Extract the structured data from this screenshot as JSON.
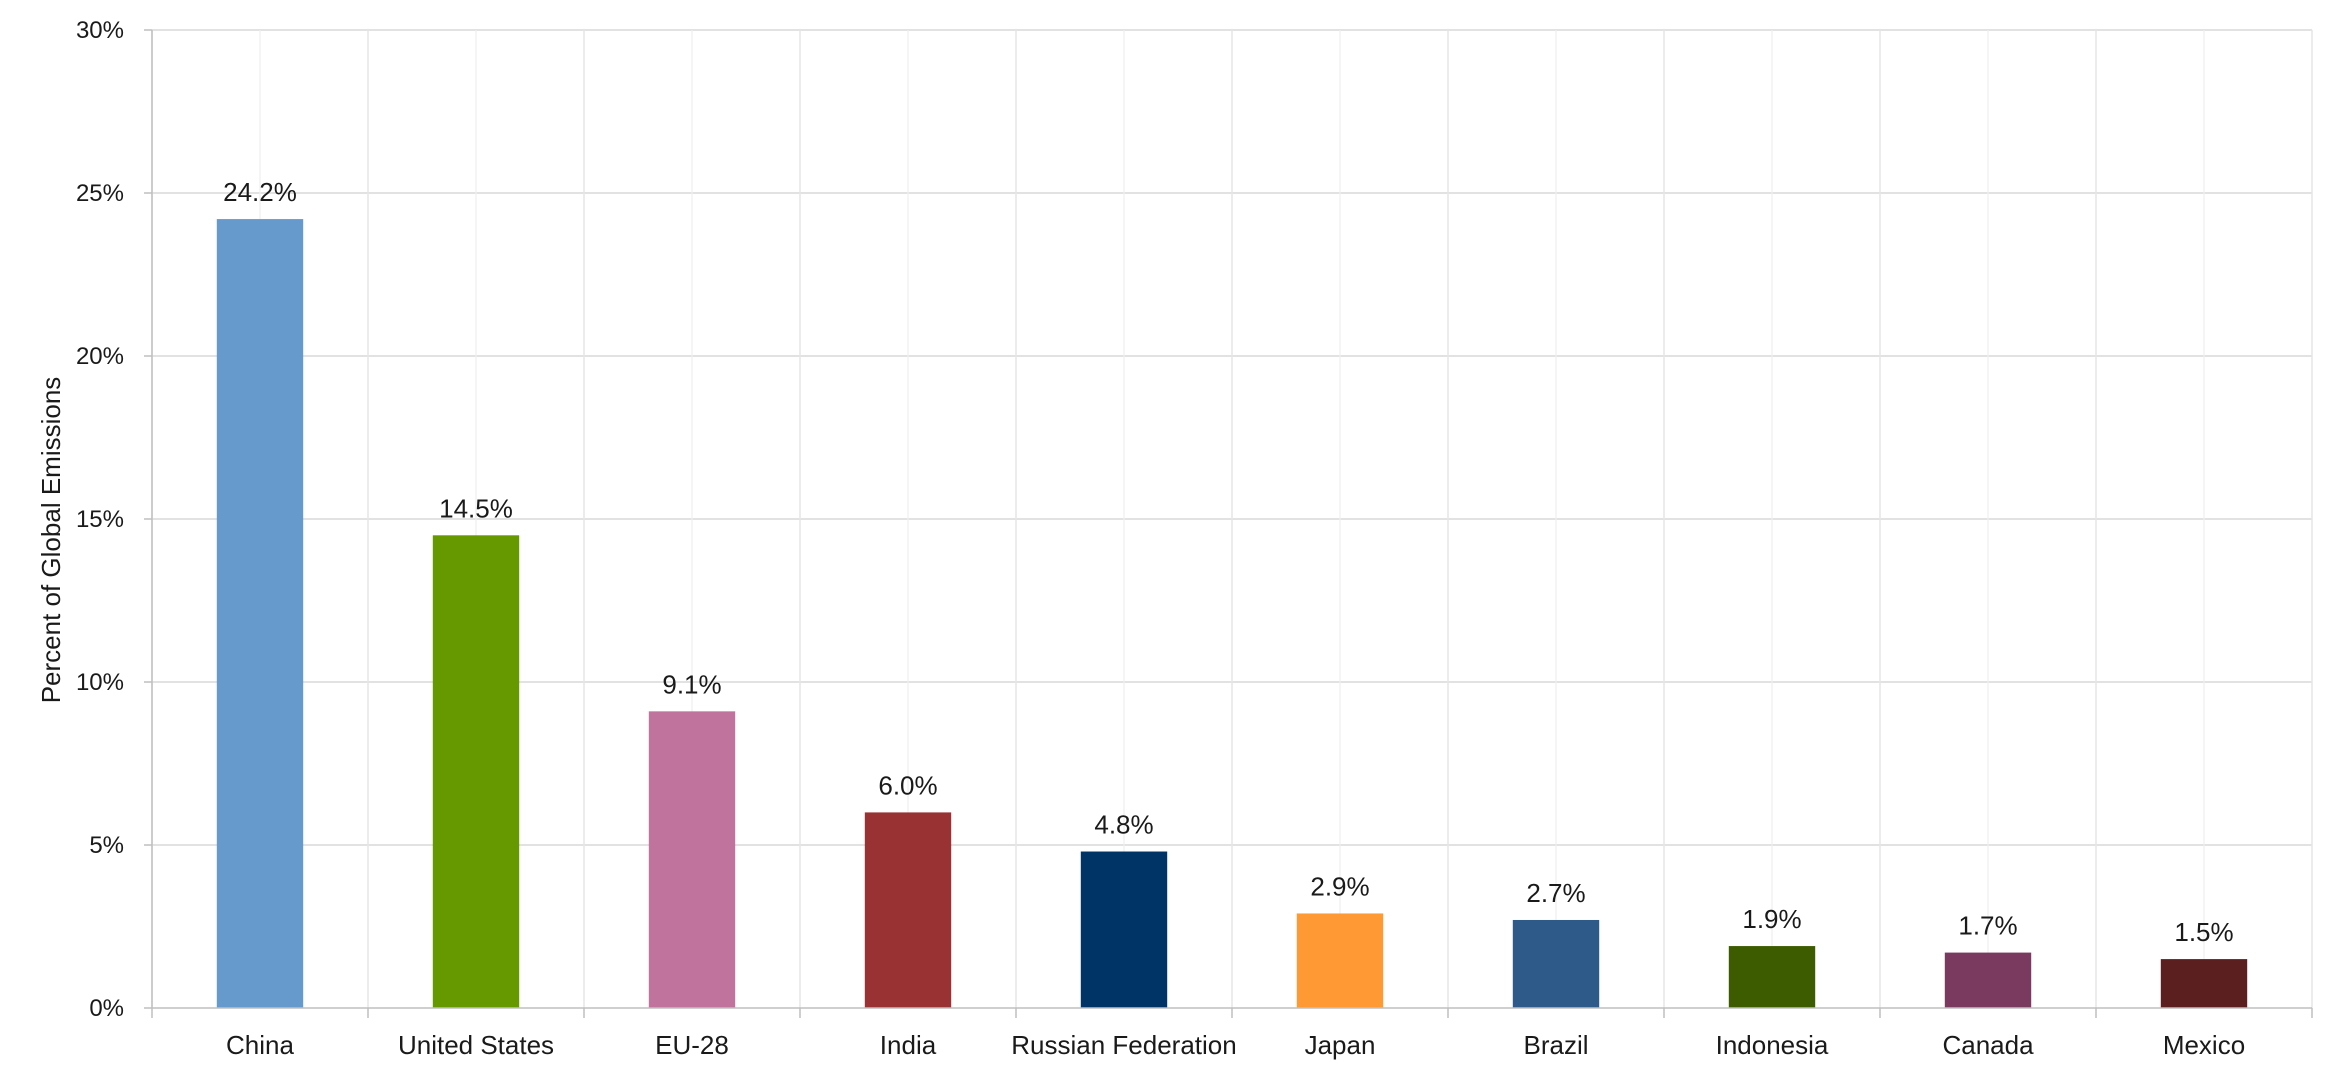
{
  "chart_data": {
    "type": "bar",
    "title": "",
    "xlabel": "",
    "ylabel": "Percent of Global Emissions",
    "ylim": [
      0,
      30
    ],
    "y_ticks": [
      0,
      5,
      10,
      15,
      20,
      25,
      30
    ],
    "y_tick_labels": [
      "0%",
      "5%",
      "10%",
      "15%",
      "20%",
      "25%",
      "30%"
    ],
    "grid": true,
    "categories": [
      "China",
      "United States",
      "EU-28",
      "India",
      "Russian Federation",
      "Japan",
      "Brazil",
      "Indonesia",
      "Canada",
      "Mexico"
    ],
    "values": [
      24.2,
      14.5,
      9.1,
      6.0,
      4.8,
      2.9,
      2.7,
      1.9,
      1.7,
      1.5
    ],
    "data_labels": [
      "24.2%",
      "14.5%",
      "9.1%",
      "6.0%",
      "4.8%",
      "2.9%",
      "2.7%",
      "1.9%",
      "1.7%",
      "1.5%"
    ],
    "colors": [
      "#6699cc",
      "#669900",
      "#c0739d",
      "#993333",
      "#003366",
      "#ff9933",
      "#2e5a8a",
      "#3d5c00",
      "#7a3a60",
      "#5c1f1f"
    ]
  }
}
